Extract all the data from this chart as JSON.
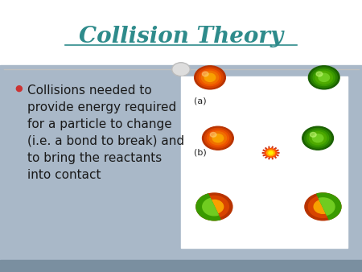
{
  "title": "Collision Theory",
  "title_color": "#2E8B8B",
  "title_fontsize": 20,
  "background_top": "#FFFFFF",
  "content_bg": "#A9B8C8",
  "bullet_text": "Collisions needed to\nprovide energy required\nfor a particle to change\n(i.e. a bond to break) and\nto bring the reactants\ninto contact",
  "bullet_color": "#1a1a1a",
  "bullet_fontsize": 11,
  "separator_color": "#C0C0C0",
  "label_a": "(a)",
  "label_b": "(b)",
  "bottom_strip_color": "#7A8FA0"
}
